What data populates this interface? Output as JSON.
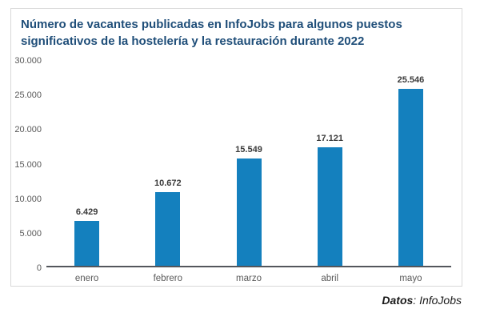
{
  "chart_data": {
    "type": "bar",
    "title_line1": "Número de vacantes publicadas en InfoJobs para algunos puestos",
    "title_line2": "significativos de la hostelería y la restauración durante 2022",
    "categories": [
      "enero",
      "febrero",
      "marzo",
      "abril",
      "mayo"
    ],
    "values": [
      6429,
      10672,
      15549,
      17121,
      25546
    ],
    "value_labels": [
      "6.429",
      "10.672",
      "15.549",
      "17.121",
      "25.546"
    ],
    "ylim": [
      0,
      30000
    ],
    "y_ticks": [
      {
        "value": 0,
        "label": "0"
      },
      {
        "value": 5000,
        "label": "5.000"
      },
      {
        "value": 10000,
        "label": "10.000"
      },
      {
        "value": 15000,
        "label": "15.000"
      },
      {
        "value": 20000,
        "label": "20.000"
      },
      {
        "value": 25000,
        "label": "25.000"
      },
      {
        "value": 30000,
        "label": "30.000"
      }
    ],
    "grid": false,
    "legend": false,
    "xlabel": "",
    "ylabel": ""
  },
  "colors": {
    "bar": "#1480be",
    "title": "#1f4e79",
    "axis_line": "#53565c",
    "tick_label": "#595959",
    "value_label": "#3b3b3b",
    "card_border": "#d9d9d9"
  },
  "footer": {
    "bold": "Datos",
    "rest": ": InfoJobs"
  }
}
